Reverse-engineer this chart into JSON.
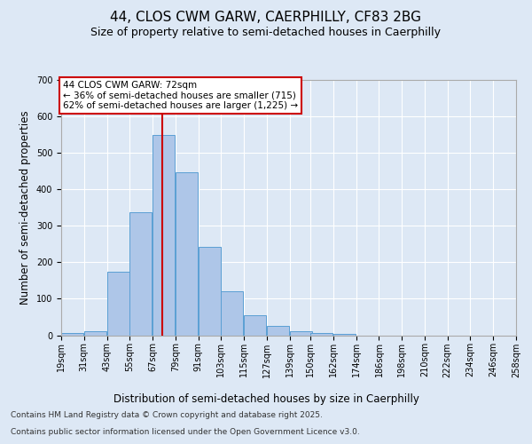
{
  "title_line1": "44, CLOS CWM GARW, CAERPHILLY, CF83 2BG",
  "title_line2": "Size of property relative to semi-detached houses in Caerphilly",
  "xlabel": "Distribution of semi-detached houses by size in Caerphilly",
  "ylabel": "Number of semi-detached properties",
  "bins": [
    19,
    31,
    43,
    55,
    67,
    79,
    91,
    103,
    115,
    127,
    139,
    150,
    162,
    174,
    186,
    198,
    210,
    222,
    234,
    246,
    258
  ],
  "bin_labels": [
    "19sqm",
    "31sqm",
    "43sqm",
    "55sqm",
    "67sqm",
    "79sqm",
    "91sqm",
    "103sqm",
    "115sqm",
    "127sqm",
    "139sqm",
    "150sqm",
    "162sqm",
    "174sqm",
    "186sqm",
    "198sqm",
    "210sqm",
    "222sqm",
    "234sqm",
    "246sqm",
    "258sqm"
  ],
  "values": [
    5,
    12,
    175,
    338,
    548,
    448,
    242,
    120,
    55,
    25,
    10,
    7,
    3,
    0,
    0,
    0,
    0,
    0,
    0,
    0
  ],
  "bar_color": "#aec6e8",
  "bar_edge_color": "#5a9fd4",
  "vline_x": 72,
  "vline_color": "#cc0000",
  "annotation_text": "44 CLOS CWM GARW: 72sqm\n← 36% of semi-detached houses are smaller (715)\n62% of semi-detached houses are larger (1,225) →",
  "annotation_box_color": "#ffffff",
  "annotation_box_edge": "#cc0000",
  "ylim": [
    0,
    700
  ],
  "yticks": [
    0,
    100,
    200,
    300,
    400,
    500,
    600,
    700
  ],
  "background_color": "#dde8f5",
  "plot_bg_color": "#dde8f5",
  "footer_line1": "Contains HM Land Registry data © Crown copyright and database right 2025.",
  "footer_line2": "Contains public sector information licensed under the Open Government Licence v3.0.",
  "title_fontsize": 11,
  "subtitle_fontsize": 9,
  "axis_label_fontsize": 8.5,
  "tick_fontsize": 7,
  "annotation_fontsize": 7.5,
  "footer_fontsize": 6.5
}
